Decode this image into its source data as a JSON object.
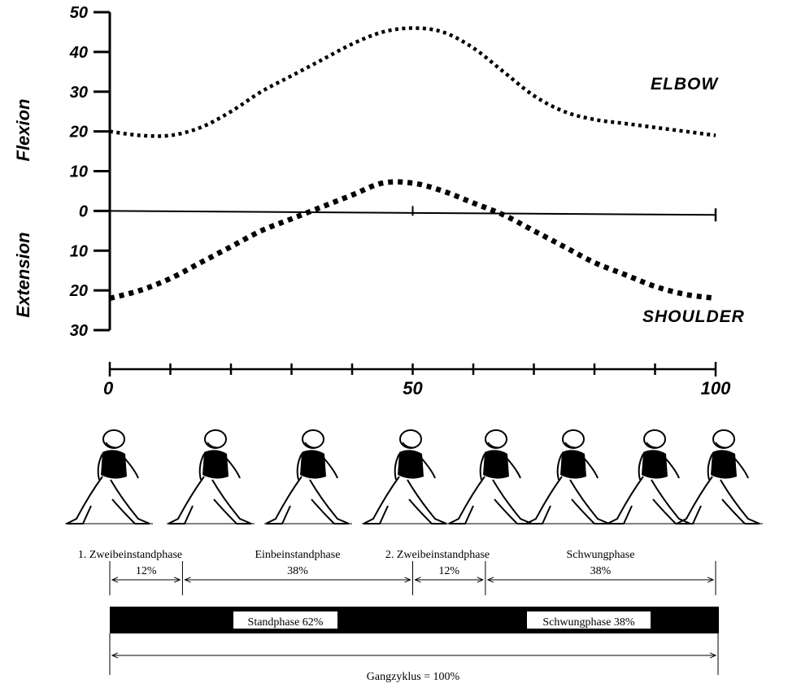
{
  "chart_data": {
    "type": "line",
    "y_axis": {
      "ticks": [
        "50",
        "40",
        "30",
        "20",
        "10",
        "0",
        "10",
        "20",
        "30"
      ],
      "tick_values": [
        50,
        40,
        30,
        20,
        10,
        0,
        -10,
        -20,
        -30
      ],
      "upper_label": "Flexion",
      "lower_label": "Extension",
      "ylim": [
        -30,
        50
      ]
    },
    "x_axis": {
      "tick_labels": [
        "0",
        "50",
        "100"
      ],
      "label_values": [
        0,
        50,
        100
      ],
      "minor_ticks": [
        0,
        10,
        20,
        30,
        40,
        50,
        60,
        70,
        80,
        90,
        100
      ],
      "xlim": [
        0,
        100
      ]
    },
    "series": [
      {
        "name": "ELBOW",
        "x": [
          0,
          5,
          10,
          15,
          20,
          25,
          30,
          35,
          40,
          45,
          50,
          55,
          60,
          65,
          70,
          75,
          80,
          85,
          90,
          95,
          100
        ],
        "y": [
          20,
          19,
          19,
          21,
          25,
          30,
          34,
          38,
          42,
          45,
          46,
          45,
          41,
          35,
          29,
          25,
          23,
          22,
          21,
          20,
          19
        ]
      },
      {
        "name": "SHOULDER",
        "x": [
          0,
          5,
          10,
          15,
          20,
          25,
          30,
          35,
          40,
          45,
          50,
          55,
          60,
          65,
          70,
          75,
          80,
          85,
          90,
          95,
          100
        ],
        "y": [
          -22,
          -20,
          -17,
          -13,
          -9,
          -5,
          -2,
          1,
          4,
          7,
          7,
          5,
          2,
          -1,
          -5,
          -9,
          -13,
          -16,
          -19,
          -21,
          -22
        ]
      }
    ],
    "phases": [
      {
        "label": "1. Zweibeinstandphase",
        "percent": "12%",
        "start": 0,
        "end": 12
      },
      {
        "label": "Einbeinstandphase",
        "percent": "38%",
        "start": 12,
        "end": 50
      },
      {
        "label": "2. Zweibeinstandphase",
        "percent": "12%",
        "start": 50,
        "end": 62
      },
      {
        "label": "Schwungphase",
        "percent": "38%",
        "start": 62,
        "end": 100
      }
    ],
    "phase_bar": [
      {
        "label": "Standphase 62%",
        "start": 0,
        "end": 62
      },
      {
        "label": "Schwungphase 38%",
        "start": 62,
        "end": 100
      }
    ],
    "cycle_label": "Gangzyklus = 100%",
    "walker_count": 8
  }
}
